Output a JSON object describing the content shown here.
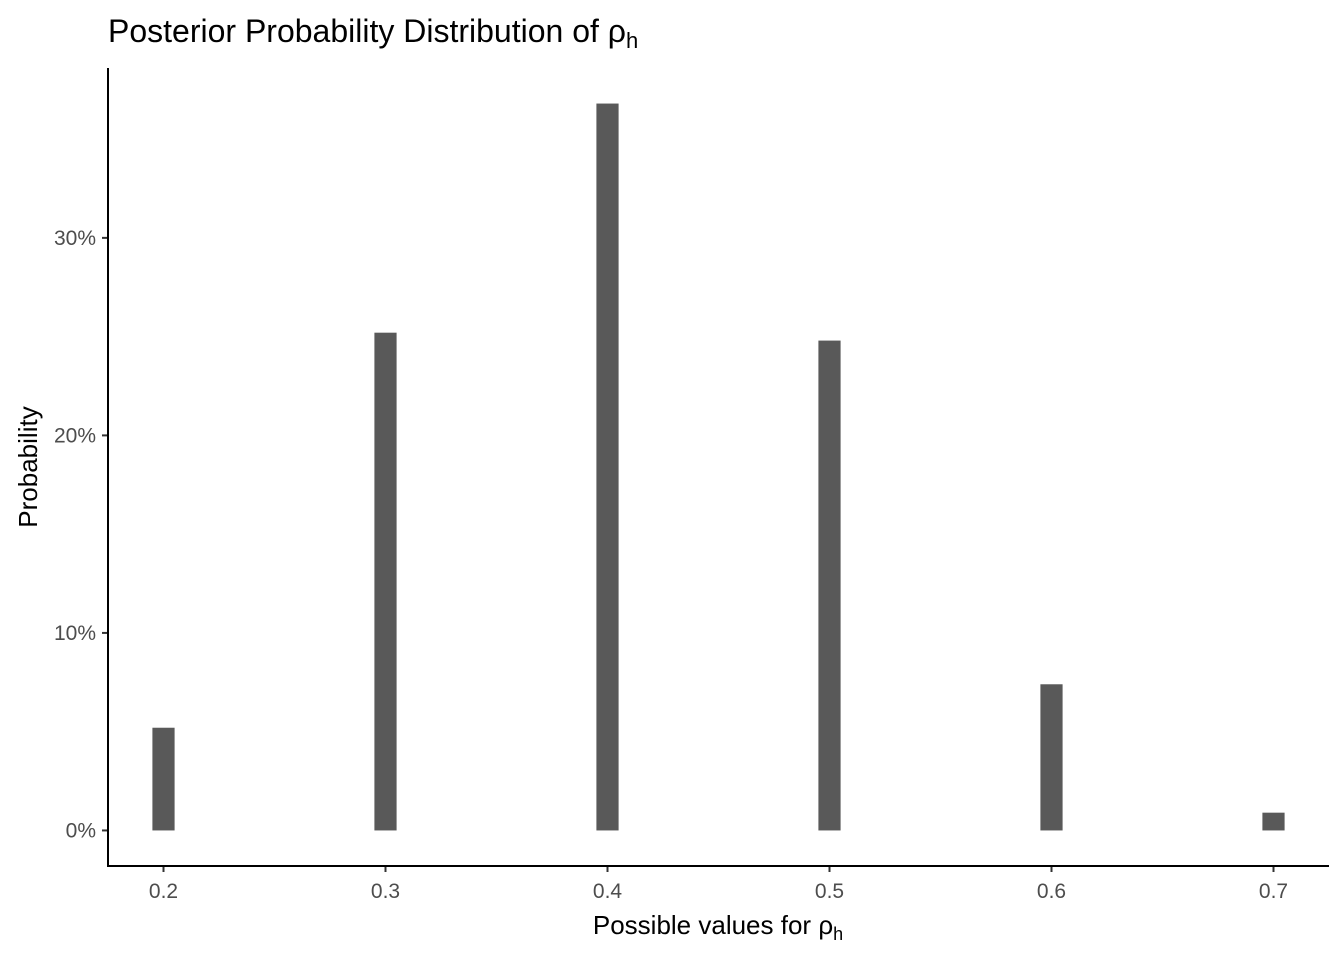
{
  "chart_data": {
    "type": "bar",
    "title_main": "Posterior Probability Distribution of ",
    "title_symbol": "ρ",
    "title_subscript": "h",
    "xlabel_main": "Possible values for ",
    "xlabel_symbol": "ρ",
    "xlabel_subscript": "h",
    "ylabel": "Probability",
    "x": [
      0.2,
      0.3,
      0.4,
      0.5,
      0.6,
      0.7
    ],
    "values": [
      0.052,
      0.252,
      0.368,
      0.248,
      0.074,
      0.009
    ],
    "bar_width": 0.01,
    "xlim": [
      0.175,
      0.725
    ],
    "ylim": [
      -0.018,
      0.386
    ],
    "x_ticks": [
      0.2,
      0.3,
      0.4,
      0.5,
      0.6,
      0.7
    ],
    "x_tick_labels": [
      "0.2",
      "0.3",
      "0.4",
      "0.5",
      "0.6",
      "0.7"
    ],
    "y_ticks": [
      0,
      0.1,
      0.2,
      0.3
    ],
    "y_tick_labels": [
      "0%",
      "10%",
      "20%",
      "30%"
    ],
    "bar_color": "#595959",
    "grid": false,
    "legend": "none"
  }
}
